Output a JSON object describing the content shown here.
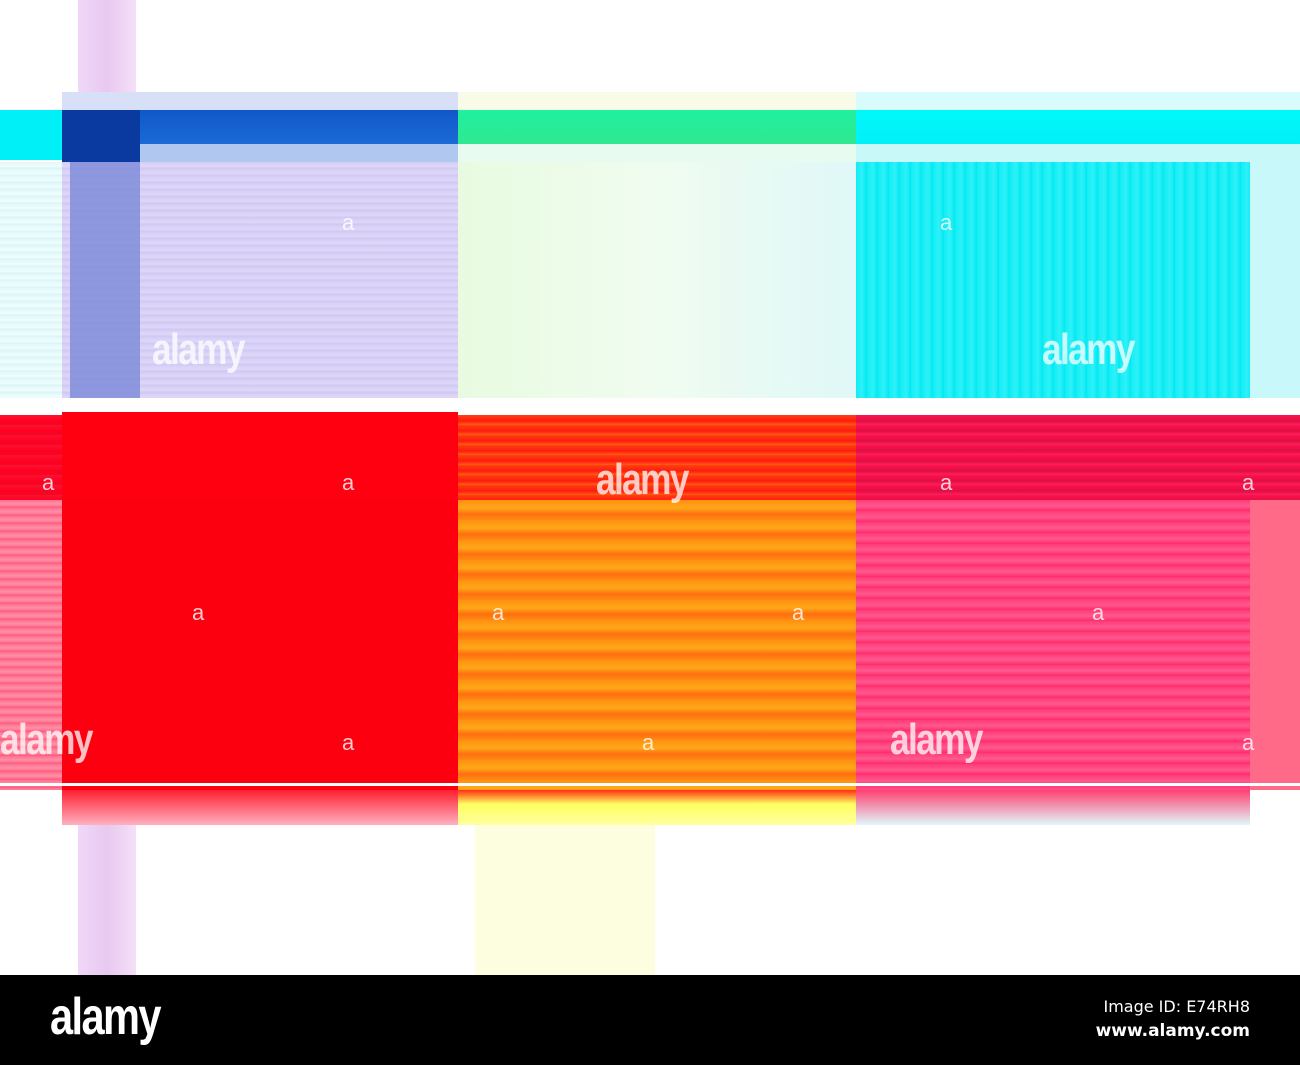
{
  "colors": {
    "cyan": "#00ffff",
    "blue": "#1060d0",
    "green": "#20f0a0",
    "lavender": "#d8d0f8",
    "pale_green": "#eefbe8",
    "red": "#ff0010",
    "orange": "#ff8a10",
    "pink": "#ff3a78",
    "footer": "#000000"
  },
  "watermarks": [
    "alamy",
    "alamy",
    "alamy",
    "alamy",
    "alamy"
  ],
  "watermark_letter": "a",
  "footer": {
    "logo": "alamy",
    "image_id": "Image ID: E74RH8",
    "site": "www.alamy.com"
  }
}
